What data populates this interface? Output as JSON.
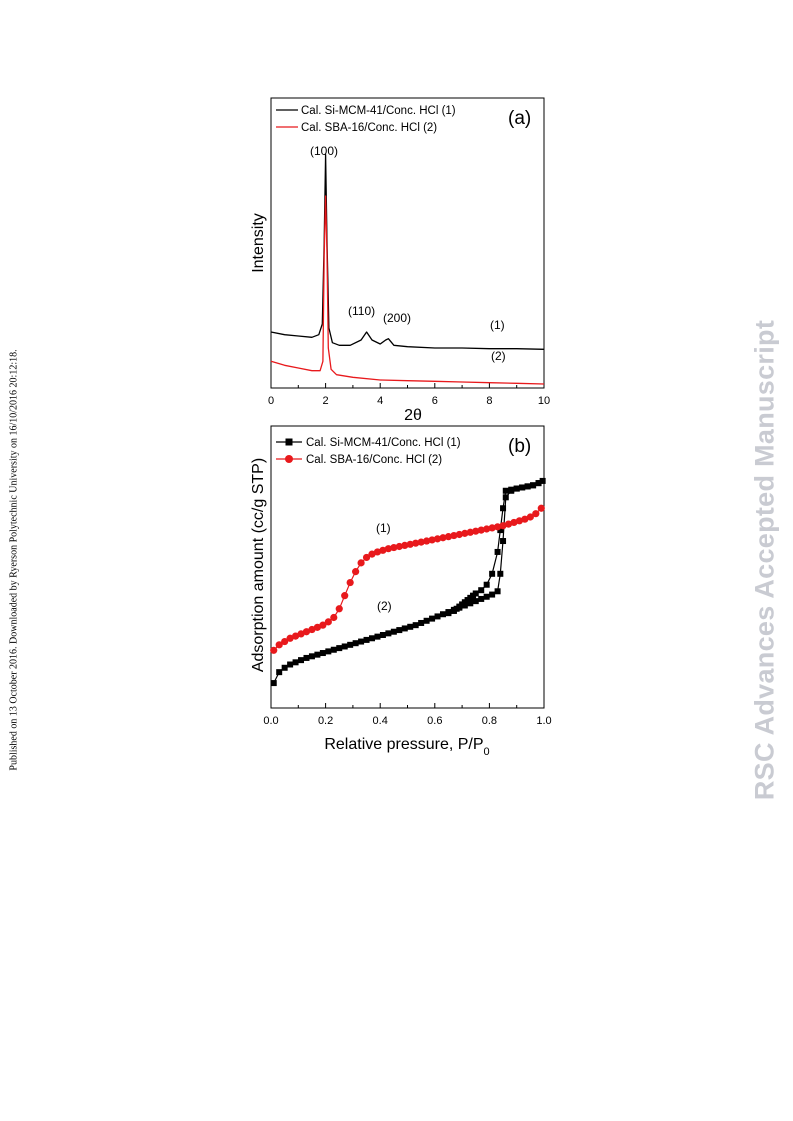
{
  "side_note": "Published on 13 October 2016. Downloaded by Ryerson Polytechnic University on 16/10/2016 20:12:18.",
  "watermark": "RSC Advances Accepted Manuscript",
  "colors": {
    "series1": "#000000",
    "series2": "#e8191c",
    "watermark": "#c9cbd2"
  },
  "chart_data": [
    {
      "type": "line",
      "panel_label": "(a)",
      "xlabel": "2θ",
      "ylabel": "Intensity",
      "xlim": [
        0,
        10
      ],
      "xticks": [
        0,
        2,
        4,
        6,
        8,
        10
      ],
      "y_ticks_labeled": false,
      "legend": "top-left",
      "series": [
        {
          "name": "Cal. Si-MCM-41/Conc. HCl (1)",
          "color": "#000000",
          "x": [
            0,
            0.5,
            1.0,
            1.5,
            1.75,
            1.88,
            1.95,
            2.0,
            2.05,
            2.12,
            2.25,
            2.5,
            2.9,
            3.3,
            3.5,
            3.7,
            4.0,
            4.2,
            4.3,
            4.5,
            5,
            6,
            7,
            8,
            9,
            10
          ],
          "y": [
            42,
            40,
            39,
            38,
            40,
            48,
            110,
            175,
            110,
            45,
            34,
            32,
            32,
            36,
            42,
            36,
            33,
            36,
            37,
            32,
            31,
            30,
            30,
            29.5,
            29.5,
            29
          ]
        },
        {
          "name": "Cal. SBA-16/Conc. HCl (2)",
          "color": "#e8191c",
          "x": [
            0,
            0.5,
            1.0,
            1.5,
            1.8,
            1.9,
            1.95,
            2.0,
            2.05,
            2.1,
            2.2,
            2.4,
            3,
            4,
            5,
            6,
            7,
            8,
            9,
            10
          ],
          "y": [
            20,
            17,
            15,
            13,
            13,
            20,
            100,
            144,
            100,
            30,
            14,
            10,
            8,
            6,
            5.5,
            5,
            4.5,
            4,
            3.5,
            3
          ]
        }
      ],
      "annotations": [
        "(100)",
        "(110)",
        "(200)",
        "(1)",
        "(2)"
      ]
    },
    {
      "type": "line",
      "panel_label": "(b)",
      "xlabel": "Relative pressure, P/P",
      "xlabel_sub": "0",
      "ylabel": "Adsorption amount (cc/g STP)",
      "xlim": [
        0,
        1.0
      ],
      "xticks": [
        "0.0",
        "0.2",
        "0.4",
        "0.6",
        "0.8",
        "1.0"
      ],
      "y_ticks_labeled": false,
      "legend": "top-left",
      "series": [
        {
          "name": "Cal. Si-MCM-41/Conc. HCl (1)",
          "color": "#000000",
          "marker": "square",
          "x": [
            0.01,
            0.03,
            0.05,
            0.07,
            0.09,
            0.11,
            0.13,
            0.15,
            0.17,
            0.19,
            0.21,
            0.23,
            0.25,
            0.27,
            0.29,
            0.31,
            0.33,
            0.35,
            0.37,
            0.39,
            0.41,
            0.43,
            0.45,
            0.47,
            0.49,
            0.51,
            0.53,
            0.55,
            0.57,
            0.59,
            0.61,
            0.63,
            0.65,
            0.67,
            0.69,
            0.71,
            0.73,
            0.75,
            0.77,
            0.79,
            0.81,
            0.83,
            0.84,
            0.85,
            0.86,
            0.88,
            0.9,
            0.92,
            0.94,
            0.96,
            0.98,
            0.995,
            0.98,
            0.96,
            0.94,
            0.92,
            0.9,
            0.88,
            0.86,
            0.85,
            0.84,
            0.83,
            0.81,
            0.79,
            0.77,
            0.75,
            0.74,
            0.73,
            0.72,
            0.71,
            0.7,
            0.69,
            0.68,
            0.67,
            0.65
          ],
          "y": [
            10,
            20,
            24,
            27,
            29,
            31,
            33,
            34.5,
            36,
            37.5,
            39,
            40.5,
            42,
            43.5,
            45,
            46.5,
            48,
            49.5,
            51,
            52.5,
            54,
            55.5,
            57,
            58.5,
            60,
            61.5,
            63,
            65,
            67,
            69,
            71,
            73,
            75,
            77,
            79,
            81,
            83,
            85,
            87,
            89,
            91,
            94,
            110,
            140,
            180,
            186,
            188,
            189,
            190,
            191,
            193,
            195,
            193,
            191,
            190,
            189,
            188,
            187,
            186,
            170,
            150,
            130,
            110,
            100,
            95,
            92,
            90,
            88,
            86,
            84,
            82,
            80,
            78,
            76,
            74
          ]
        },
        {
          "name": "Cal. SBA-16/Conc. HCl (2)",
          "color": "#e8191c",
          "marker": "circle",
          "x": [
            0.01,
            0.03,
            0.05,
            0.07,
            0.09,
            0.11,
            0.13,
            0.15,
            0.17,
            0.19,
            0.21,
            0.23,
            0.25,
            0.27,
            0.29,
            0.31,
            0.33,
            0.35,
            0.37,
            0.39,
            0.41,
            0.43,
            0.45,
            0.47,
            0.49,
            0.51,
            0.53,
            0.55,
            0.57,
            0.59,
            0.61,
            0.63,
            0.65,
            0.67,
            0.69,
            0.71,
            0.73,
            0.75,
            0.77,
            0.79,
            0.81,
            0.83,
            0.85,
            0.87,
            0.89,
            0.91,
            0.93,
            0.95,
            0.97,
            0.99
          ],
          "y": [
            40,
            45,
            48,
            51,
            53,
            55,
            57,
            59,
            61,
            63,
            66,
            70,
            78,
            90,
            102,
            112,
            120,
            125,
            128,
            130,
            131.5,
            133,
            134,
            135,
            136,
            137,
            138,
            139,
            140,
            141,
            142,
            143,
            144,
            145,
            146,
            147,
            148,
            149,
            150,
            151,
            152,
            153,
            154,
            155.5,
            157,
            158.5,
            160,
            162,
            165,
            170
          ]
        }
      ],
      "annotations": [
        "(1)",
        "(2)"
      ]
    }
  ]
}
